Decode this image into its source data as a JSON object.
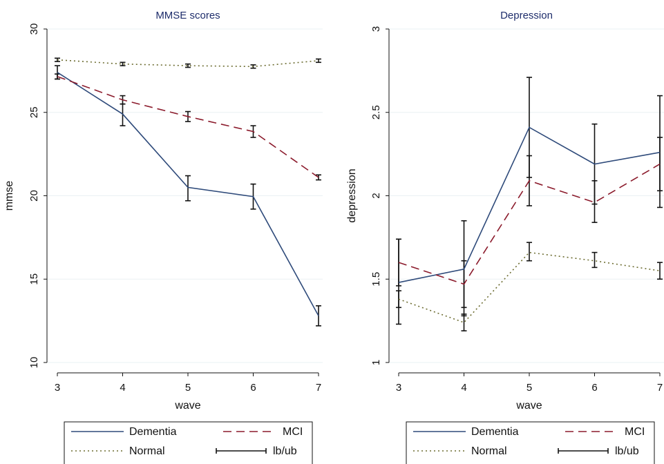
{
  "chart_data": [
    {
      "type": "line",
      "title": "MMSE scores",
      "xlabel": "wave",
      "ylabel": "mmse",
      "x": [
        3,
        4,
        5,
        6,
        7
      ],
      "xticks": [
        "3",
        "4",
        "5",
        "6",
        "7"
      ],
      "ylim": [
        10,
        30
      ],
      "yticks": [
        "10",
        "15",
        "20",
        "25",
        "30"
      ],
      "grid": true,
      "series": [
        {
          "name": "Dementia",
          "color": "#2e4a7a",
          "style": "solid",
          "values": [
            27.4,
            24.9,
            20.5,
            19.95,
            12.8
          ],
          "lb": [
            27.0,
            24.2,
            19.7,
            19.2,
            12.2
          ],
          "ub": [
            27.8,
            25.5,
            21.2,
            20.7,
            13.4
          ]
        },
        {
          "name": "MCI",
          "color": "#8b1a2b",
          "style": "dashed",
          "values": [
            27.15,
            25.75,
            24.75,
            23.85,
            21.1
          ],
          "lb": [
            27.0,
            25.5,
            24.45,
            23.5,
            20.95
          ],
          "ub": [
            27.3,
            26.0,
            25.05,
            24.2,
            21.25
          ]
        },
        {
          "name": "Normal",
          "color": "#6b6b2f",
          "style": "dotted",
          "values": [
            28.15,
            27.9,
            27.8,
            27.75,
            28.1
          ],
          "lb": [
            28.05,
            27.8,
            27.7,
            27.65,
            28.0
          ],
          "ub": [
            28.25,
            28.0,
            27.9,
            27.85,
            28.2
          ]
        }
      ],
      "legend": {
        "position": "bottom",
        "items": [
          "Dementia",
          "MCI",
          "Normal",
          "lb/ub"
        ]
      }
    },
    {
      "type": "line",
      "title": "Depression",
      "xlabel": "wave",
      "ylabel": "depression",
      "x": [
        3,
        4,
        5,
        6,
        7
      ],
      "xticks": [
        "3",
        "4",
        "5",
        "6",
        "7"
      ],
      "ylim": [
        1,
        3
      ],
      "yticks": [
        "1",
        "1.5",
        "2",
        "2.5",
        "3"
      ],
      "grid": true,
      "series": [
        {
          "name": "Dementia",
          "color": "#2e4a7a",
          "style": "solid",
          "values": [
            1.48,
            1.56,
            2.41,
            2.19,
            2.26
          ],
          "lb": [
            1.23,
            1.28,
            2.11,
            1.95,
            1.93
          ],
          "ub": [
            1.74,
            1.85,
            2.71,
            2.43,
            2.6
          ]
        },
        {
          "name": "MCI",
          "color": "#8b1a2b",
          "style": "dashed",
          "values": [
            1.6,
            1.47,
            2.09,
            1.96,
            2.19
          ],
          "lb": [
            1.46,
            1.33,
            1.94,
            1.84,
            2.03
          ],
          "ub": [
            1.74,
            1.61,
            2.24,
            2.09,
            2.35
          ]
        },
        {
          "name": "Normal",
          "color": "#6b6b2f",
          "style": "dotted",
          "values": [
            1.38,
            1.24,
            1.66,
            1.61,
            1.55
          ],
          "lb": [
            1.33,
            1.19,
            1.61,
            1.57,
            1.5
          ],
          "ub": [
            1.43,
            1.29,
            1.72,
            1.66,
            1.6
          ]
        }
      ],
      "legend": {
        "position": "bottom",
        "items": [
          "Dementia",
          "MCI",
          "Normal",
          "lb/ub"
        ]
      }
    }
  ]
}
